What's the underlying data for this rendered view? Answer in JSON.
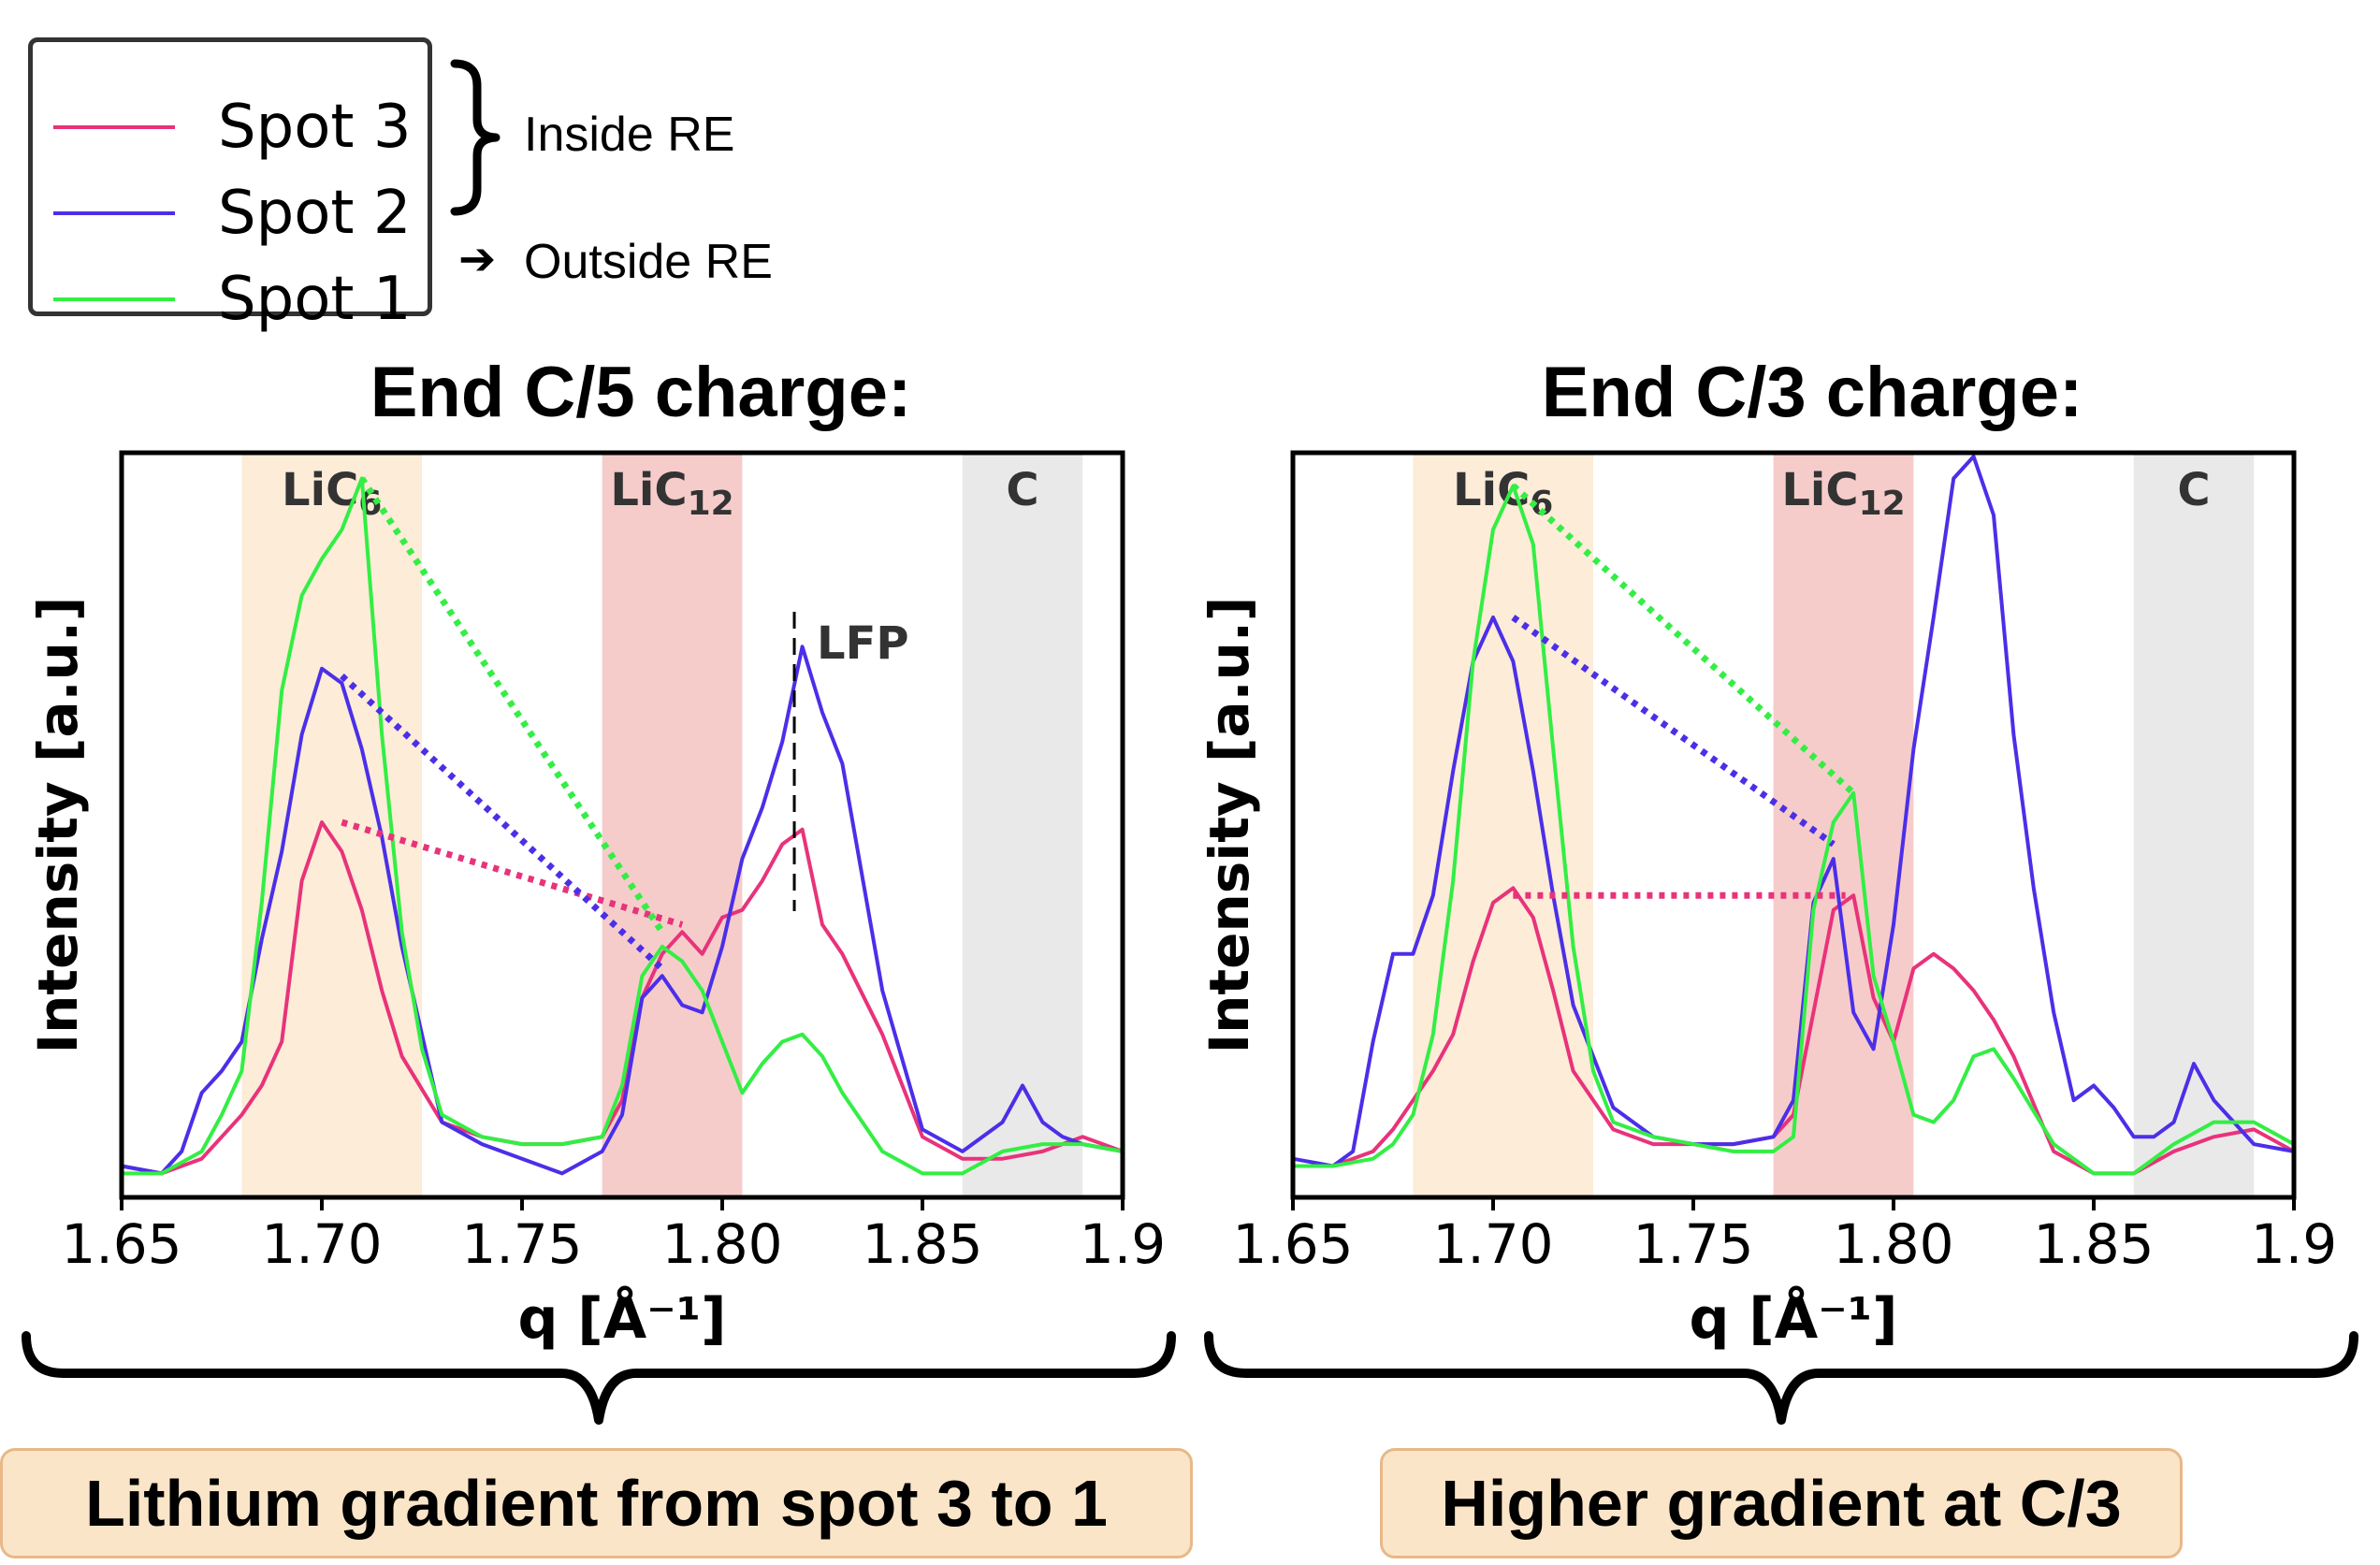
{
  "legend": {
    "items": [
      {
        "label": "Spot 3",
        "color": "#e8337a"
      },
      {
        "label": "Spot 2",
        "color": "#4b2fe8"
      },
      {
        "label": "Spot 1",
        "color": "#33ee44"
      }
    ],
    "inside_label": "Inside RE",
    "outside_label": "Outside RE",
    "arrow": "➔"
  },
  "chart_data": [
    {
      "type": "line",
      "title": "End C/5 charge:",
      "xlabel": "q [Å⁻¹]",
      "ylabel": "Intensity [a.u.]",
      "xlim": [
        1.65,
        1.9
      ],
      "ylim": [
        0,
        1
      ],
      "xticks": [
        "1.65",
        "1.70",
        "1.75",
        "1.80",
        "1.85",
        "1.9"
      ],
      "bands": [
        {
          "label": "LiC6",
          "label_main": "LiC",
          "label_sub": "6",
          "x0": 1.68,
          "x1": 1.725,
          "color": "#fcecd8"
        },
        {
          "label": "LiC12",
          "label_main": "LiC",
          "label_sub": "12",
          "x0": 1.77,
          "x1": 1.805,
          "color": "#f6cccb"
        },
        {
          "label": "C",
          "label_main": "C",
          "label_sub": "",
          "x0": 1.86,
          "x1": 1.89,
          "color": "#e9e9e9"
        }
      ],
      "marker": {
        "label": "LFP",
        "x": 1.818
      },
      "series": [
        {
          "name": "Spot 3",
          "color": "#e8337a",
          "x": [
            1.65,
            1.66,
            1.67,
            1.675,
            1.68,
            1.685,
            1.69,
            1.695,
            1.7,
            1.705,
            1.71,
            1.715,
            1.72,
            1.73,
            1.74,
            1.75,
            1.76,
            1.77,
            1.775,
            1.78,
            1.785,
            1.79,
            1.795,
            1.8,
            1.805,
            1.81,
            1.815,
            1.82,
            1.825,
            1.83,
            1.84,
            1.85,
            1.86,
            1.87,
            1.88,
            1.89,
            1.9
          ],
          "y": [
            0.03,
            0.02,
            0.04,
            0.07,
            0.1,
            0.14,
            0.2,
            0.42,
            0.5,
            0.46,
            0.38,
            0.27,
            0.18,
            0.09,
            0.07,
            0.06,
            0.06,
            0.07,
            0.12,
            0.26,
            0.32,
            0.35,
            0.32,
            0.37,
            0.38,
            0.42,
            0.47,
            0.49,
            0.36,
            0.32,
            0.21,
            0.07,
            0.04,
            0.04,
            0.05,
            0.07,
            0.05
          ]
        },
        {
          "name": "Spot 2",
          "color": "#4b2fe8",
          "x": [
            1.65,
            1.66,
            1.665,
            1.67,
            1.675,
            1.68,
            1.685,
            1.69,
            1.695,
            1.7,
            1.705,
            1.71,
            1.715,
            1.72,
            1.73,
            1.74,
            1.75,
            1.76,
            1.77,
            1.775,
            1.78,
            1.785,
            1.79,
            1.795,
            1.8,
            1.805,
            1.81,
            1.815,
            1.82,
            1.825,
            1.83,
            1.84,
            1.85,
            1.86,
            1.87,
            1.875,
            1.88,
            1.885,
            1.89,
            1.9
          ],
          "y": [
            0.03,
            0.02,
            0.05,
            0.13,
            0.16,
            0.2,
            0.34,
            0.46,
            0.62,
            0.71,
            0.69,
            0.6,
            0.48,
            0.33,
            0.09,
            0.06,
            0.04,
            0.02,
            0.05,
            0.1,
            0.26,
            0.29,
            0.25,
            0.24,
            0.33,
            0.45,
            0.52,
            0.61,
            0.74,
            0.65,
            0.58,
            0.27,
            0.08,
            0.05,
            0.09,
            0.14,
            0.09,
            0.07,
            0.06,
            0.05
          ]
        },
        {
          "name": "Spot 1",
          "color": "#33ee44",
          "x": [
            1.65,
            1.66,
            1.67,
            1.675,
            1.68,
            1.685,
            1.69,
            1.695,
            1.7,
            1.705,
            1.71,
            1.715,
            1.72,
            1.725,
            1.73,
            1.74,
            1.75,
            1.76,
            1.77,
            1.775,
            1.78,
            1.785,
            1.79,
            1.795,
            1.8,
            1.805,
            1.81,
            1.815,
            1.82,
            1.825,
            1.83,
            1.84,
            1.85,
            1.86,
            1.87,
            1.88,
            1.89,
            1.9
          ],
          "y": [
            0.02,
            0.02,
            0.05,
            0.1,
            0.16,
            0.39,
            0.68,
            0.81,
            0.86,
            0.9,
            0.97,
            0.62,
            0.35,
            0.19,
            0.1,
            0.07,
            0.06,
            0.06,
            0.07,
            0.14,
            0.29,
            0.33,
            0.31,
            0.27,
            0.2,
            0.13,
            0.17,
            0.2,
            0.21,
            0.18,
            0.13,
            0.05,
            0.02,
            0.02,
            0.05,
            0.06,
            0.06,
            0.05
          ]
        }
      ],
      "trend_lines": [
        {
          "series": "Spot 3",
          "from": [
            1.705,
            0.5
          ],
          "to": [
            1.79,
            0.36
          ]
        },
        {
          "series": "Spot 2",
          "from": [
            1.705,
            0.7
          ],
          "to": [
            1.785,
            0.3
          ]
        },
        {
          "series": "Spot 1",
          "from": [
            1.71,
            0.97
          ],
          "to": [
            1.785,
            0.35
          ]
        }
      ]
    },
    {
      "type": "line",
      "title": "End C/3 charge:",
      "xlabel": "q [Å⁻¹]",
      "ylabel": "Intensity [a.u.]",
      "xlim": [
        1.65,
        1.9
      ],
      "ylim": [
        0,
        1
      ],
      "xticks": [
        "1.65",
        "1.70",
        "1.75",
        "1.80",
        "1.85",
        "1.9"
      ],
      "bands": [
        {
          "label": "LiC6",
          "label_main": "LiC",
          "label_sub": "6",
          "x0": 1.68,
          "x1": 1.725,
          "color": "#fcecd8"
        },
        {
          "label": "LiC12",
          "label_main": "LiC",
          "label_sub": "12",
          "x0": 1.77,
          "x1": 1.805,
          "color": "#f6cccb"
        },
        {
          "label": "C",
          "label_main": "C",
          "label_sub": "",
          "x0": 1.86,
          "x1": 1.89,
          "color": "#e9e9e9"
        }
      ],
      "series": [
        {
          "name": "Spot 3",
          "color": "#e8337a",
          "x": [
            1.65,
            1.66,
            1.67,
            1.675,
            1.68,
            1.685,
            1.69,
            1.695,
            1.7,
            1.705,
            1.71,
            1.715,
            1.72,
            1.73,
            1.74,
            1.75,
            1.76,
            1.77,
            1.775,
            1.78,
            1.785,
            1.79,
            1.795,
            1.8,
            1.805,
            1.81,
            1.815,
            1.82,
            1.825,
            1.83,
            1.84,
            1.85,
            1.86,
            1.87,
            1.88,
            1.89,
            1.9
          ],
          "y": [
            0.03,
            0.03,
            0.05,
            0.08,
            0.12,
            0.16,
            0.21,
            0.31,
            0.39,
            0.41,
            0.37,
            0.27,
            0.16,
            0.08,
            0.06,
            0.06,
            0.06,
            0.07,
            0.1,
            0.24,
            0.38,
            0.4,
            0.26,
            0.2,
            0.3,
            0.32,
            0.3,
            0.27,
            0.23,
            0.18,
            0.05,
            0.02,
            0.02,
            0.05,
            0.07,
            0.08,
            0.05
          ]
        },
        {
          "name": "Spot 2",
          "color": "#4b2fe8",
          "x": [
            1.65,
            1.66,
            1.665,
            1.67,
            1.675,
            1.68,
            1.685,
            1.69,
            1.695,
            1.7,
            1.705,
            1.71,
            1.715,
            1.72,
            1.73,
            1.74,
            1.75,
            1.76,
            1.77,
            1.775,
            1.78,
            1.785,
            1.79,
            1.795,
            1.8,
            1.805,
            1.81,
            1.815,
            1.82,
            1.825,
            1.83,
            1.835,
            1.84,
            1.845,
            1.85,
            1.855,
            1.86,
            1.865,
            1.87,
            1.875,
            1.88,
            1.885,
            1.89,
            1.9
          ],
          "y": [
            0.04,
            0.03,
            0.05,
            0.2,
            0.32,
            0.32,
            0.4,
            0.57,
            0.72,
            0.78,
            0.72,
            0.57,
            0.4,
            0.25,
            0.11,
            0.07,
            0.06,
            0.06,
            0.07,
            0.12,
            0.39,
            0.45,
            0.24,
            0.19,
            0.36,
            0.6,
            0.78,
            0.97,
            1.0,
            0.92,
            0.62,
            0.41,
            0.24,
            0.12,
            0.14,
            0.11,
            0.07,
            0.07,
            0.09,
            0.17,
            0.12,
            0.09,
            0.06,
            0.05
          ]
        },
        {
          "name": "Spot 1",
          "color": "#33ee44",
          "x": [
            1.65,
            1.66,
            1.67,
            1.675,
            1.68,
            1.685,
            1.69,
            1.695,
            1.7,
            1.705,
            1.71,
            1.715,
            1.72,
            1.725,
            1.73,
            1.74,
            1.75,
            1.76,
            1.77,
            1.775,
            1.78,
            1.785,
            1.79,
            1.795,
            1.8,
            1.805,
            1.81,
            1.815,
            1.82,
            1.825,
            1.83,
            1.84,
            1.85,
            1.86,
            1.87,
            1.88,
            1.89,
            1.9
          ],
          "y": [
            0.03,
            0.03,
            0.04,
            0.06,
            0.1,
            0.21,
            0.42,
            0.72,
            0.9,
            0.96,
            0.88,
            0.6,
            0.33,
            0.16,
            0.09,
            0.07,
            0.06,
            0.05,
            0.05,
            0.07,
            0.38,
            0.5,
            0.54,
            0.29,
            0.2,
            0.1,
            0.09,
            0.12,
            0.18,
            0.19,
            0.15,
            0.06,
            0.02,
            0.02,
            0.06,
            0.09,
            0.09,
            0.06
          ]
        }
      ],
      "trend_lines": [
        {
          "series": "Spot 3",
          "from": [
            1.705,
            0.4
          ],
          "to": [
            1.788,
            0.4
          ]
        },
        {
          "series": "Spot 2",
          "from": [
            1.705,
            0.78
          ],
          "to": [
            1.785,
            0.47
          ]
        },
        {
          "series": "Spot 1",
          "from": [
            1.705,
            0.96
          ],
          "to": [
            1.79,
            0.54
          ]
        }
      ]
    }
  ],
  "conclusions": {
    "left": "Lithium gradient from spot 3 to 1",
    "right": "Higher gradient at C/3"
  }
}
